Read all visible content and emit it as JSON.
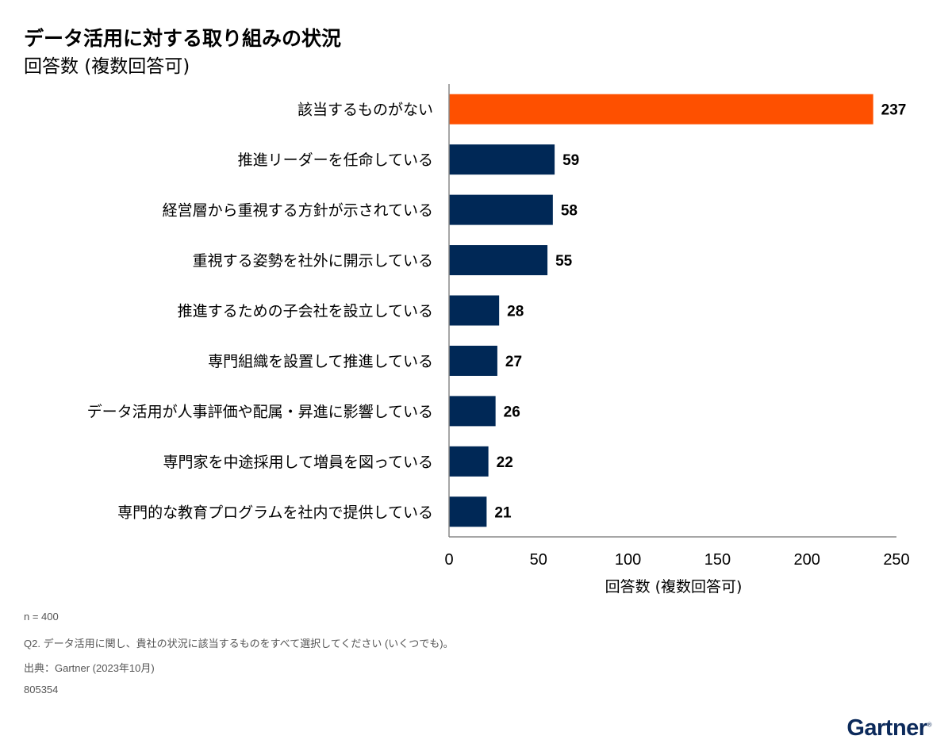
{
  "header": {
    "title": "データ活用に対する取り組みの状況",
    "subtitle": "回答数 (複数回答可)"
  },
  "chart_data": {
    "type": "bar",
    "orientation": "horizontal",
    "title": "データ活用に対する取り組みの状況",
    "subtitle": "回答数 (複数回答可)",
    "categories": [
      "該当するものがない",
      "推進リーダーを任命している",
      "経営層から重視する方針が示されている",
      "重視する姿勢を社外に開示している",
      "推進するための子会社を設立している",
      "専門組織を設置して推進している",
      "データ活用が人事評価や配属・昇進に影響している",
      "専門家を中途採用して増員を図っている",
      "専門的な教育プログラムを社内で提供している"
    ],
    "values": [
      237,
      59,
      58,
      55,
      28,
      27,
      26,
      22,
      21
    ],
    "colors": [
      "#fe5000",
      "#002856",
      "#002856",
      "#002856",
      "#002856",
      "#002856",
      "#002856",
      "#002856",
      "#002856"
    ],
    "xlabel": "回答数 (複数回答可)",
    "ylabel": "",
    "xlim": [
      0,
      250
    ],
    "xticks": [
      "0",
      "50",
      "100",
      "150",
      "200",
      "250"
    ],
    "grid": false,
    "legend": "none"
  },
  "footer": {
    "n": "n = 400",
    "question": "Q2. データ活用に関し、貴社の状況に該当するものをすべて選択してください (いくつでも)。",
    "source": "出典：Gartner (2023年10月)",
    "id": "805354"
  },
  "logo": {
    "text": "Gartner",
    "mark": "®"
  }
}
